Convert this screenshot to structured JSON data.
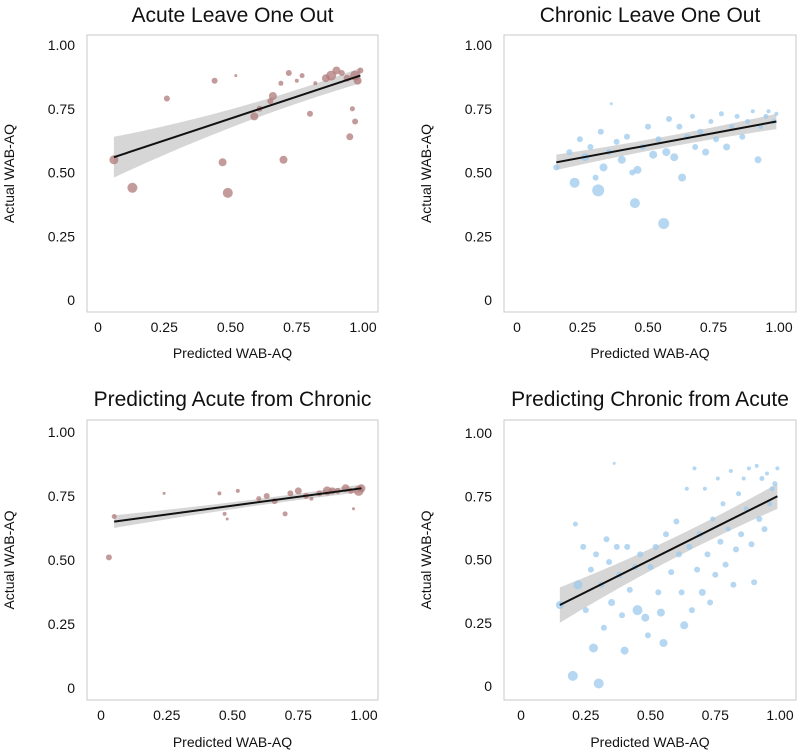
{
  "chart_data": [
    {
      "type": "scatter",
      "title": "Acute Leave One Out",
      "xlabel": "Predicted WAB-AQ",
      "ylabel": "Actual WAB-AQ",
      "xlim": [
        0,
        1
      ],
      "ylim": [
        0,
        1
      ],
      "xticks": [
        {
          "v": 0,
          "label": "0"
        },
        {
          "v": 0.25,
          "label": "0.25"
        },
        {
          "v": 0.5,
          "label": "0.50"
        },
        {
          "v": 0.75,
          "label": "0.75"
        },
        {
          "v": 1,
          "label": "1.00"
        }
      ],
      "yticks": [
        {
          "v": 0,
          "label": "0"
        },
        {
          "v": 0.25,
          "label": "0.25"
        },
        {
          "v": 0.5,
          "label": "0.50"
        },
        {
          "v": 0.75,
          "label": "0.75"
        },
        {
          "v": 1,
          "label": "1.00"
        }
      ],
      "point_color": "#b07a7a",
      "fit": {
        "x1": 0.06,
        "y1": 0.56,
        "x2": 0.99,
        "y2": 0.88,
        "ci_start": 0.08,
        "ci_end": 0.03
      },
      "points": [
        {
          "x": 0.06,
          "y": 0.55,
          "s": 4.5
        },
        {
          "x": 0.13,
          "y": 0.44,
          "s": 5
        },
        {
          "x": 0.26,
          "y": 0.79,
          "s": 3
        },
        {
          "x": 0.44,
          "y": 0.86,
          "s": 3
        },
        {
          "x": 0.47,
          "y": 0.54,
          "s": 4
        },
        {
          "x": 0.49,
          "y": 0.42,
          "s": 5
        },
        {
          "x": 0.52,
          "y": 0.88,
          "s": 1.5
        },
        {
          "x": 0.59,
          "y": 0.72,
          "s": 4
        },
        {
          "x": 0.61,
          "y": 0.75,
          "s": 3
        },
        {
          "x": 0.65,
          "y": 0.78,
          "s": 3
        },
        {
          "x": 0.66,
          "y": 0.8,
          "s": 4
        },
        {
          "x": 0.69,
          "y": 0.85,
          "s": 2.5
        },
        {
          "x": 0.7,
          "y": 0.55,
          "s": 4
        },
        {
          "x": 0.72,
          "y": 0.89,
          "s": 3
        },
        {
          "x": 0.75,
          "y": 0.86,
          "s": 2
        },
        {
          "x": 0.77,
          "y": 0.88,
          "s": 2.5
        },
        {
          "x": 0.8,
          "y": 0.73,
          "s": 3
        },
        {
          "x": 0.82,
          "y": 0.85,
          "s": 2
        },
        {
          "x": 0.86,
          "y": 0.87,
          "s": 4
        },
        {
          "x": 0.88,
          "y": 0.88,
          "s": 5
        },
        {
          "x": 0.9,
          "y": 0.9,
          "s": 4
        },
        {
          "x": 0.92,
          "y": 0.89,
          "s": 3
        },
        {
          "x": 0.94,
          "y": 0.87,
          "s": 3.5
        },
        {
          "x": 0.95,
          "y": 0.64,
          "s": 3.5
        },
        {
          "x": 0.96,
          "y": 0.75,
          "s": 2.5
        },
        {
          "x": 0.97,
          "y": 0.7,
          "s": 3
        },
        {
          "x": 0.97,
          "y": 0.88,
          "s": 5
        },
        {
          "x": 0.98,
          "y": 0.86,
          "s": 4
        },
        {
          "x": 0.99,
          "y": 0.9,
          "s": 3
        }
      ]
    },
    {
      "type": "scatter",
      "title": "Chronic Leave One Out",
      "xlabel": "Predicted WAB-AQ",
      "ylabel": "Actual WAB-AQ",
      "xlim": [
        0,
        1
      ],
      "ylim": [
        0,
        1
      ],
      "xticks": [
        {
          "v": 0,
          "label": "0"
        },
        {
          "v": 0.25,
          "label": "0.25"
        },
        {
          "v": 0.5,
          "label": "0.50"
        },
        {
          "v": 0.75,
          "label": "0.75"
        },
        {
          "v": 1,
          "label": "1.00"
        }
      ],
      "yticks": [
        {
          "v": 0,
          "label": "0"
        },
        {
          "v": 0.25,
          "label": "0.25"
        },
        {
          "v": 0.5,
          "label": "0.50"
        },
        {
          "v": 0.75,
          "label": "0.75"
        },
        {
          "v": 1,
          "label": "1.00"
        }
      ],
      "point_color": "#9ccaec",
      "fit": {
        "x1": 0.15,
        "y1": 0.54,
        "x2": 0.99,
        "y2": 0.7,
        "ci_start": 0.03,
        "ci_end": 0.03
      },
      "points": [
        {
          "x": 0.15,
          "y": 0.52,
          "s": 3
        },
        {
          "x": 0.2,
          "y": 0.58,
          "s": 3
        },
        {
          "x": 0.22,
          "y": 0.46,
          "s": 5
        },
        {
          "x": 0.24,
          "y": 0.63,
          "s": 3
        },
        {
          "x": 0.26,
          "y": 0.56,
          "s": 4
        },
        {
          "x": 0.28,
          "y": 0.6,
          "s": 3
        },
        {
          "x": 0.3,
          "y": 0.48,
          "s": 3
        },
        {
          "x": 0.31,
          "y": 0.43,
          "s": 6
        },
        {
          "x": 0.32,
          "y": 0.66,
          "s": 3
        },
        {
          "x": 0.33,
          "y": 0.52,
          "s": 4
        },
        {
          "x": 0.35,
          "y": 0.58,
          "s": 3
        },
        {
          "x": 0.36,
          "y": 0.77,
          "s": 1.5
        },
        {
          "x": 0.38,
          "y": 0.62,
          "s": 3
        },
        {
          "x": 0.4,
          "y": 0.55,
          "s": 4
        },
        {
          "x": 0.42,
          "y": 0.64,
          "s": 3
        },
        {
          "x": 0.44,
          "y": 0.5,
          "s": 3
        },
        {
          "x": 0.45,
          "y": 0.38,
          "s": 5
        },
        {
          "x": 0.46,
          "y": 0.51,
          "s": 4
        },
        {
          "x": 0.48,
          "y": 0.6,
          "s": 3
        },
        {
          "x": 0.5,
          "y": 0.68,
          "s": 3
        },
        {
          "x": 0.52,
          "y": 0.57,
          "s": 4
        },
        {
          "x": 0.54,
          "y": 0.63,
          "s": 3
        },
        {
          "x": 0.56,
          "y": 0.3,
          "s": 5.5
        },
        {
          "x": 0.57,
          "y": 0.58,
          "s": 4
        },
        {
          "x": 0.58,
          "y": 0.71,
          "s": 3
        },
        {
          "x": 0.6,
          "y": 0.56,
          "s": 4
        },
        {
          "x": 0.62,
          "y": 0.68,
          "s": 3
        },
        {
          "x": 0.63,
          "y": 0.48,
          "s": 4
        },
        {
          "x": 0.65,
          "y": 0.64,
          "s": 3
        },
        {
          "x": 0.67,
          "y": 0.72,
          "s": 2.5
        },
        {
          "x": 0.68,
          "y": 0.6,
          "s": 3
        },
        {
          "x": 0.7,
          "y": 0.66,
          "s": 3
        },
        {
          "x": 0.72,
          "y": 0.58,
          "s": 3.5
        },
        {
          "x": 0.74,
          "y": 0.7,
          "s": 2.5
        },
        {
          "x": 0.76,
          "y": 0.63,
          "s": 3
        },
        {
          "x": 0.78,
          "y": 0.73,
          "s": 2.5
        },
        {
          "x": 0.8,
          "y": 0.6,
          "s": 3.5
        },
        {
          "x": 0.82,
          "y": 0.68,
          "s": 2.5
        },
        {
          "x": 0.84,
          "y": 0.72,
          "s": 2.5
        },
        {
          "x": 0.86,
          "y": 0.64,
          "s": 3
        },
        {
          "x": 0.88,
          "y": 0.7,
          "s": 2.5
        },
        {
          "x": 0.9,
          "y": 0.74,
          "s": 2
        },
        {
          "x": 0.92,
          "y": 0.55,
          "s": 3.5
        },
        {
          "x": 0.93,
          "y": 0.68,
          "s": 2.5
        },
        {
          "x": 0.95,
          "y": 0.72,
          "s": 2.5
        },
        {
          "x": 0.96,
          "y": 0.74,
          "s": 2
        },
        {
          "x": 0.98,
          "y": 0.7,
          "s": 2.5
        },
        {
          "x": 0.99,
          "y": 0.73,
          "s": 2
        }
      ]
    },
    {
      "type": "scatter",
      "title": "Predicting Acute from Chronic",
      "xlabel": "Predicted WAB-AQ",
      "ylabel": "Actual WAB-AQ",
      "xlim": [
        0,
        1
      ],
      "ylim": [
        0,
        1
      ],
      "xticks": [
        {
          "v": 0,
          "label": "0"
        },
        {
          "v": 0.25,
          "label": "0.25"
        },
        {
          "v": 0.5,
          "label": "0.50"
        },
        {
          "v": 0.75,
          "label": "0.75"
        },
        {
          "v": 1,
          "label": "1.00"
        }
      ],
      "yticks": [
        {
          "v": 0,
          "label": "0"
        },
        {
          "v": 0.25,
          "label": "0.25"
        },
        {
          "v": 0.5,
          "label": "0.50"
        },
        {
          "v": 0.75,
          "label": "0.75"
        },
        {
          "v": 1,
          "label": "1.00"
        }
      ],
      "point_color": "#b07a7a",
      "fit": {
        "x1": 0.05,
        "y1": 0.65,
        "x2": 0.99,
        "y2": 0.78,
        "ci_start": 0.025,
        "ci_end": 0.015
      },
      "points": [
        {
          "x": 0.03,
          "y": 0.51,
          "s": 3
        },
        {
          "x": 0.05,
          "y": 0.67,
          "s": 2.5
        },
        {
          "x": 0.24,
          "y": 0.76,
          "s": 1.5
        },
        {
          "x": 0.45,
          "y": 0.76,
          "s": 2
        },
        {
          "x": 0.47,
          "y": 0.68,
          "s": 2
        },
        {
          "x": 0.48,
          "y": 0.66,
          "s": 1.5
        },
        {
          "x": 0.52,
          "y": 0.77,
          "s": 2
        },
        {
          "x": 0.6,
          "y": 0.74,
          "s": 2.5
        },
        {
          "x": 0.63,
          "y": 0.75,
          "s": 3
        },
        {
          "x": 0.66,
          "y": 0.73,
          "s": 3
        },
        {
          "x": 0.7,
          "y": 0.68,
          "s": 2.5
        },
        {
          "x": 0.72,
          "y": 0.76,
          "s": 3
        },
        {
          "x": 0.75,
          "y": 0.77,
          "s": 3.5
        },
        {
          "x": 0.78,
          "y": 0.75,
          "s": 3
        },
        {
          "x": 0.8,
          "y": 0.74,
          "s": 2
        },
        {
          "x": 0.83,
          "y": 0.76,
          "s": 3
        },
        {
          "x": 0.86,
          "y": 0.77,
          "s": 4.5
        },
        {
          "x": 0.88,
          "y": 0.77,
          "s": 3.5
        },
        {
          "x": 0.9,
          "y": 0.77,
          "s": 3
        },
        {
          "x": 0.93,
          "y": 0.78,
          "s": 4
        },
        {
          "x": 0.95,
          "y": 0.77,
          "s": 3
        },
        {
          "x": 0.96,
          "y": 0.7,
          "s": 1.5
        },
        {
          "x": 0.98,
          "y": 0.77,
          "s": 5
        },
        {
          "x": 0.99,
          "y": 0.78,
          "s": 4
        }
      ]
    },
    {
      "type": "scatter",
      "title": "Predicting Chronic from Acute",
      "xlabel": "Predicted WAB-AQ",
      "ylabel": "Actual WAB-AQ",
      "xlim": [
        0,
        1
      ],
      "ylim": [
        0,
        1
      ],
      "xticks": [
        {
          "v": 0,
          "label": "0"
        },
        {
          "v": 0.25,
          "label": "0.25"
        },
        {
          "v": 0.5,
          "label": "0.50"
        },
        {
          "v": 0.75,
          "label": "0.75"
        },
        {
          "v": 1,
          "label": "1.00"
        }
      ],
      "yticks": [
        {
          "v": 0,
          "label": "0"
        },
        {
          "v": 0.25,
          "label": "0.25"
        },
        {
          "v": 0.5,
          "label": "0.50"
        },
        {
          "v": 0.75,
          "label": "0.75"
        },
        {
          "v": 1,
          "label": "1.00"
        }
      ],
      "point_color": "#9ccaec",
      "fit": {
        "x1": 0.15,
        "y1": 0.32,
        "x2": 0.99,
        "y2": 0.75,
        "ci_start": 0.07,
        "ci_end": 0.05
      },
      "points": [
        {
          "x": 0.15,
          "y": 0.32,
          "s": 4
        },
        {
          "x": 0.2,
          "y": 0.04,
          "s": 5
        },
        {
          "x": 0.21,
          "y": 0.64,
          "s": 2.5
        },
        {
          "x": 0.22,
          "y": 0.4,
          "s": 4.5
        },
        {
          "x": 0.24,
          "y": 0.55,
          "s": 3
        },
        {
          "x": 0.25,
          "y": 0.3,
          "s": 3
        },
        {
          "x": 0.27,
          "y": 0.46,
          "s": 3
        },
        {
          "x": 0.28,
          "y": 0.15,
          "s": 4.5
        },
        {
          "x": 0.29,
          "y": 0.52,
          "s": 3
        },
        {
          "x": 0.3,
          "y": 0.01,
          "s": 5
        },
        {
          "x": 0.31,
          "y": 0.4,
          "s": 3
        },
        {
          "x": 0.32,
          "y": 0.23,
          "s": 3
        },
        {
          "x": 0.33,
          "y": 0.58,
          "s": 3
        },
        {
          "x": 0.34,
          "y": 0.49,
          "s": 3
        },
        {
          "x": 0.35,
          "y": 0.33,
          "s": 3.5
        },
        {
          "x": 0.36,
          "y": 0.88,
          "s": 1.5
        },
        {
          "x": 0.37,
          "y": 0.55,
          "s": 3
        },
        {
          "x": 0.38,
          "y": 0.44,
          "s": 3
        },
        {
          "x": 0.39,
          "y": 0.28,
          "s": 3
        },
        {
          "x": 0.4,
          "y": 0.14,
          "s": 4
        },
        {
          "x": 0.41,
          "y": 0.55,
          "s": 3
        },
        {
          "x": 0.42,
          "y": 0.38,
          "s": 3
        },
        {
          "x": 0.44,
          "y": 0.47,
          "s": 3
        },
        {
          "x": 0.45,
          "y": 0.3,
          "s": 5
        },
        {
          "x": 0.46,
          "y": 0.52,
          "s": 3
        },
        {
          "x": 0.48,
          "y": 0.27,
          "s": 4
        },
        {
          "x": 0.49,
          "y": 0.2,
          "s": 3
        },
        {
          "x": 0.5,
          "y": 0.47,
          "s": 3
        },
        {
          "x": 0.52,
          "y": 0.55,
          "s": 3
        },
        {
          "x": 0.53,
          "y": 0.37,
          "s": 3
        },
        {
          "x": 0.54,
          "y": 0.29,
          "s": 4
        },
        {
          "x": 0.55,
          "y": 0.17,
          "s": 4
        },
        {
          "x": 0.56,
          "y": 0.6,
          "s": 3
        },
        {
          "x": 0.58,
          "y": 0.45,
          "s": 3
        },
        {
          "x": 0.6,
          "y": 0.65,
          "s": 3
        },
        {
          "x": 0.61,
          "y": 0.52,
          "s": 3
        },
        {
          "x": 0.62,
          "y": 0.37,
          "s": 3
        },
        {
          "x": 0.63,
          "y": 0.24,
          "s": 4
        },
        {
          "x": 0.64,
          "y": 0.78,
          "s": 2
        },
        {
          "x": 0.65,
          "y": 0.55,
          "s": 3
        },
        {
          "x": 0.66,
          "y": 0.3,
          "s": 3
        },
        {
          "x": 0.67,
          "y": 0.86,
          "s": 2
        },
        {
          "x": 0.68,
          "y": 0.46,
          "s": 3
        },
        {
          "x": 0.69,
          "y": 0.6,
          "s": 3
        },
        {
          "x": 0.7,
          "y": 0.37,
          "s": 3.5
        },
        {
          "x": 0.71,
          "y": 0.78,
          "s": 2
        },
        {
          "x": 0.72,
          "y": 0.52,
          "s": 3
        },
        {
          "x": 0.73,
          "y": 0.33,
          "s": 3
        },
        {
          "x": 0.74,
          "y": 0.66,
          "s": 2.5
        },
        {
          "x": 0.75,
          "y": 0.44,
          "s": 3
        },
        {
          "x": 0.76,
          "y": 0.82,
          "s": 2
        },
        {
          "x": 0.77,
          "y": 0.57,
          "s": 3
        },
        {
          "x": 0.78,
          "y": 0.72,
          "s": 2.5
        },
        {
          "x": 0.79,
          "y": 0.48,
          "s": 3
        },
        {
          "x": 0.8,
          "y": 0.62,
          "s": 2.5
        },
        {
          "x": 0.81,
          "y": 0.85,
          "s": 2
        },
        {
          "x": 0.82,
          "y": 0.4,
          "s": 3
        },
        {
          "x": 0.83,
          "y": 0.54,
          "s": 3
        },
        {
          "x": 0.84,
          "y": 0.76,
          "s": 2.5
        },
        {
          "x": 0.85,
          "y": 0.6,
          "s": 3
        },
        {
          "x": 0.86,
          "y": 0.82,
          "s": 2
        },
        {
          "x": 0.87,
          "y": 0.7,
          "s": 2.5
        },
        {
          "x": 0.88,
          "y": 0.86,
          "s": 2
        },
        {
          "x": 0.89,
          "y": 0.56,
          "s": 3
        },
        {
          "x": 0.9,
          "y": 0.41,
          "s": 3
        },
        {
          "x": 0.91,
          "y": 0.87,
          "s": 2
        },
        {
          "x": 0.92,
          "y": 0.66,
          "s": 3
        },
        {
          "x": 0.93,
          "y": 0.82,
          "s": 2.5
        },
        {
          "x": 0.94,
          "y": 0.62,
          "s": 3
        },
        {
          "x": 0.95,
          "y": 0.84,
          "s": 2
        },
        {
          "x": 0.96,
          "y": 0.72,
          "s": 2.5
        },
        {
          "x": 0.97,
          "y": 0.78,
          "s": 2.5
        },
        {
          "x": 0.98,
          "y": 0.8,
          "s": 2.5
        },
        {
          "x": 0.99,
          "y": 0.86,
          "s": 2
        }
      ]
    }
  ]
}
